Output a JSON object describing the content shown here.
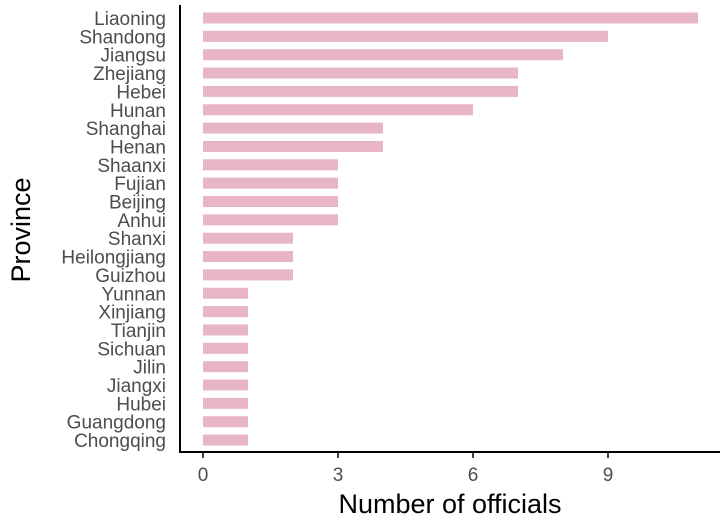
{
  "chart_data": {
    "type": "bar",
    "orientation": "horizontal",
    "categories": [
      "Liaoning",
      "Shandong",
      "Jiangsu",
      "Zhejiang",
      "Hebei",
      "Hunan",
      "Shanghai",
      "Henan",
      "Shaanxi",
      "Fujian",
      "Beijing",
      "Anhui",
      "Shanxi",
      "Heilongjiang",
      "Guizhou",
      "Yunnan",
      "Xinjiang",
      "Tianjin",
      "Sichuan",
      "Jilin",
      "Jiangxi",
      "Hubei",
      "Guangdong",
      "Chongqing"
    ],
    "values": [
      11,
      9,
      8,
      7,
      7,
      6,
      4,
      4,
      3,
      3,
      3,
      3,
      2,
      2,
      2,
      1,
      1,
      1,
      1,
      1,
      1,
      1,
      1,
      1
    ],
    "title": "",
    "xlabel": "Number of officials",
    "ylabel": "Province",
    "xlim": [
      0,
      11
    ],
    "xticks": [
      0,
      3,
      6,
      9
    ],
    "bar_color": "#e8b5c8",
    "grid": false
  }
}
